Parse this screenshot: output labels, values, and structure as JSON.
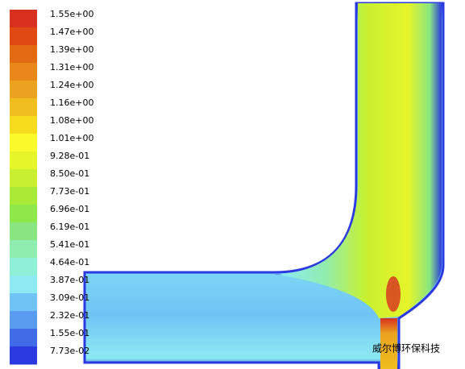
{
  "colorbar": {
    "labels": [
      "1.55e+00",
      "1.47e+00",
      "1.39e+00",
      "1.31e+00",
      "1.24e+00",
      "1.16e+00",
      "1.08e+00",
      "1.01e+00",
      "9.28e-01",
      "8.50e-01",
      "7.73e-01",
      "6.96e-01",
      "6.19e-01",
      "5.41e-01",
      "4.64e-01",
      "3.87e-01",
      "3.09e-01",
      "2.32e-01",
      "1.55e-01",
      "7.73e-02"
    ],
    "colors": [
      "#d7301f",
      "#e04a12",
      "#e36a10",
      "#e8871a",
      "#eba31f",
      "#f0be1e",
      "#f6dc1c",
      "#fafa2a",
      "#e6f52a",
      "#c8f030",
      "#a8ea35",
      "#8ee84a",
      "#88e580",
      "#90edb0",
      "#8ff0d8",
      "#8ceaf3",
      "#6fc4f5",
      "#5a9cf0",
      "#3f6ce6",
      "#2a3ae0"
    ]
  },
  "watermark": "威尔博环保科技"
}
